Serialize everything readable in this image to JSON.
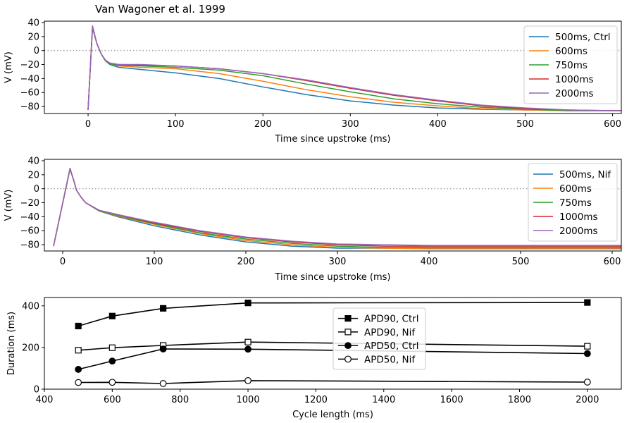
{
  "figure": {
    "title": "Van Wagoner et al. 1999"
  },
  "colors": {
    "c500": "#1f77b4",
    "c600": "#ff7f0e",
    "c750": "#2ca02c",
    "c1000": "#d62728",
    "c2000": "#9467bd"
  },
  "chart_data": [
    {
      "type": "line",
      "xlabel": "Time since upstroke (ms)",
      "ylabel": "V (mV)",
      "xlim": [
        -50,
        610
      ],
      "ylim": [
        -90,
        42
      ],
      "xticks": [
        0,
        100,
        200,
        300,
        400,
        500,
        600
      ],
      "yticks": [
        -80,
        -60,
        -40,
        -20,
        0,
        20,
        40
      ],
      "hline": 0,
      "legend_position": "top-right",
      "series": [
        {
          "name": "500ms, Ctrl",
          "color": "#1f77b4",
          "x": [
            0,
            5,
            10,
            15,
            20,
            25,
            35,
            60,
            100,
            150,
            200,
            250,
            300,
            350,
            400,
            450,
            500,
            550,
            600,
            610
          ],
          "y": [
            -85,
            32,
            10,
            -5,
            -15,
            -20,
            -24,
            -27,
            -32,
            -40,
            -52,
            -63,
            -72,
            -78,
            -82,
            -84,
            -85,
            -86,
            -86,
            -86
          ]
        },
        {
          "name": "600ms",
          "color": "#ff7f0e",
          "x": [
            0,
            5,
            10,
            15,
            20,
            25,
            35,
            60,
            100,
            150,
            200,
            250,
            300,
            350,
            400,
            450,
            500,
            550,
            600,
            610
          ],
          "y": [
            -85,
            33,
            10,
            -5,
            -15,
            -19,
            -22,
            -24,
            -26,
            -33,
            -44,
            -56,
            -66,
            -74,
            -79,
            -83,
            -85,
            -86,
            -86,
            -86
          ]
        },
        {
          "name": "750ms",
          "color": "#2ca02c",
          "x": [
            0,
            5,
            10,
            15,
            20,
            25,
            35,
            60,
            100,
            150,
            200,
            250,
            300,
            350,
            400,
            450,
            500,
            550,
            600,
            610
          ],
          "y": [
            -85,
            34,
            10,
            -5,
            -15,
            -19,
            -21,
            -22,
            -24,
            -28,
            -36,
            -48,
            -59,
            -69,
            -76,
            -81,
            -84,
            -86,
            -86,
            -86
          ]
        },
        {
          "name": "1000ms",
          "color": "#d62728",
          "x": [
            0,
            5,
            10,
            15,
            20,
            25,
            35,
            60,
            100,
            150,
            200,
            250,
            300,
            350,
            400,
            450,
            500,
            550,
            600,
            610
          ],
          "y": [
            -85,
            35,
            10,
            -5,
            -14,
            -18,
            -20,
            -21,
            -22,
            -26,
            -33,
            -43,
            -54,
            -64,
            -72,
            -79,
            -83,
            -85,
            -86,
            -86
          ]
        },
        {
          "name": "2000ms",
          "color": "#9467bd",
          "x": [
            0,
            5,
            10,
            15,
            20,
            25,
            35,
            60,
            100,
            150,
            200,
            250,
            300,
            350,
            400,
            450,
            500,
            550,
            600,
            610
          ],
          "y": [
            -85,
            35,
            10,
            -5,
            -14,
            -18,
            -20,
            -20,
            -22,
            -26,
            -33,
            -42,
            -53,
            -63,
            -71,
            -78,
            -82,
            -85,
            -86,
            -86
          ]
        }
      ]
    },
    {
      "type": "line",
      "xlabel": "Time since upstroke (ms)",
      "ylabel": "V (mV)",
      "xlim": [
        -20,
        610
      ],
      "ylim": [
        -89,
        42
      ],
      "xticks": [
        0,
        100,
        200,
        300,
        400,
        500,
        600
      ],
      "yticks": [
        -80,
        -60,
        -40,
        -20,
        0,
        20,
        40
      ],
      "hline": 0,
      "legend_position": "top-right",
      "series": [
        {
          "name": "500ms, Nif",
          "color": "#1f77b4",
          "x": [
            -10,
            8,
            12,
            15,
            20,
            25,
            40,
            60,
            100,
            150,
            200,
            250,
            300,
            350,
            400,
            450,
            500,
            550,
            600,
            610
          ],
          "y": [
            -82,
            28,
            12,
            -2,
            -12,
            -20,
            -32,
            -40,
            -53,
            -66,
            -76,
            -82,
            -85,
            -85,
            -85,
            -85,
            -85,
            -85,
            -85,
            -85
          ]
        },
        {
          "name": "600ms",
          "color": "#ff7f0e",
          "x": [
            -10,
            8,
            12,
            15,
            20,
            25,
            40,
            60,
            100,
            150,
            200,
            250,
            300,
            350,
            400,
            450,
            500,
            550,
            600,
            610
          ],
          "y": [
            -82,
            28,
            12,
            -2,
            -12,
            -20,
            -32,
            -39,
            -51,
            -64,
            -74,
            -80,
            -84,
            -85,
            -86,
            -86,
            -86,
            -86,
            -86,
            -86
          ]
        },
        {
          "name": "750ms",
          "color": "#2ca02c",
          "x": [
            -10,
            8,
            12,
            15,
            20,
            25,
            40,
            60,
            100,
            150,
            200,
            250,
            300,
            350,
            400,
            450,
            500,
            550,
            600,
            610
          ],
          "y": [
            -82,
            29,
            12,
            -2,
            -12,
            -20,
            -32,
            -38,
            -50,
            -63,
            -72,
            -78,
            -82,
            -84,
            -84,
            -84,
            -84,
            -84,
            -84,
            -84
          ]
        },
        {
          "name": "1000ms",
          "color": "#d62728",
          "x": [
            -10,
            8,
            12,
            15,
            20,
            25,
            40,
            60,
            100,
            150,
            200,
            250,
            300,
            350,
            400,
            450,
            500,
            550,
            600,
            610
          ],
          "y": [
            -82,
            29,
            12,
            -2,
            -12,
            -20,
            -31,
            -37,
            -49,
            -61,
            -70,
            -76,
            -80,
            -82,
            -82,
            -82,
            -82,
            -82,
            -82,
            -82
          ]
        },
        {
          "name": "2000ms",
          "color": "#9467bd",
          "x": [
            -10,
            8,
            12,
            15,
            20,
            25,
            40,
            60,
            100,
            150,
            200,
            250,
            300,
            350,
            400,
            450,
            500,
            550,
            600,
            610
          ],
          "y": [
            -82,
            29,
            12,
            -2,
            -12,
            -20,
            -31,
            -37,
            -48,
            -60,
            -69,
            -75,
            -79,
            -80,
            -81,
            -81,
            -81,
            -81,
            -81,
            -81
          ]
        }
      ]
    },
    {
      "type": "line",
      "xlabel": "Cycle length (ms)",
      "ylabel": "Duration (ms)",
      "xlim": [
        400,
        2100
      ],
      "ylim": [
        0,
        440
      ],
      "xticks": [
        400,
        600,
        800,
        1000,
        1200,
        1400,
        1600,
        1800,
        2000
      ],
      "yticks": [
        0,
        200,
        400
      ],
      "legend_position": "center",
      "categories_x": [
        500,
        600,
        750,
        1000,
        2000
      ],
      "series": [
        {
          "name": "APD90, Ctrl",
          "marker": "square",
          "filled": true,
          "y": [
            303,
            351,
            388,
            414,
            416
          ]
        },
        {
          "name": "APD90, Nif",
          "marker": "square",
          "filled": false,
          "y": [
            187,
            199,
            210,
            226,
            206
          ]
        },
        {
          "name": "APD50, Ctrl",
          "marker": "circle",
          "filled": true,
          "y": [
            95,
            135,
            193,
            192,
            171
          ]
        },
        {
          "name": "APD50, Nif",
          "marker": "circle",
          "filled": false,
          "y": [
            32,
            33,
            27,
            41,
            34
          ]
        }
      ]
    }
  ]
}
